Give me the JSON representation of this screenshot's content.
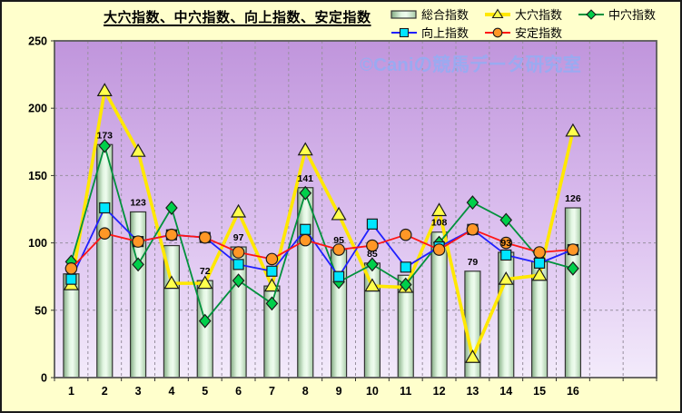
{
  "title": "大穴指数、中穴指数、向上指数、安定指数",
  "watermark": "©Caniの競馬データ研究室",
  "colors": {
    "page_background": "#ffffcc",
    "plot_gradient_top": "#c095dc",
    "plot_gradient_bottom": "#f3ebfb",
    "grid_line": "#98909f",
    "bar_edge": "#333333",
    "bar_fill_light": "#effcef",
    "bar_fill_dark": "#84ac84",
    "watermark_color": "#98abf2",
    "text_color": "#000000"
  },
  "legend": {
    "items": [
      {
        "label": "総合指数",
        "swatch": "bar"
      },
      {
        "label": "大穴指数",
        "swatch": "triangle"
      },
      {
        "label": "中穴指数",
        "swatch": "diamond"
      },
      {
        "label": "向上指数",
        "swatch": "square"
      },
      {
        "label": "安定指数",
        "swatch": "circle"
      }
    ],
    "rows": [
      [
        0,
        1,
        2
      ],
      [
        3,
        4
      ]
    ]
  },
  "chart_data": {
    "type": "combo-bar-line",
    "title": "大穴指数、中穴指数、向上指数、安定指数",
    "categories": [
      1,
      2,
      3,
      4,
      5,
      6,
      7,
      8,
      9,
      10,
      11,
      12,
      13,
      14,
      15,
      16
    ],
    "x_axis": {
      "labels": [
        "1",
        "2",
        "3",
        "4",
        "5",
        "6",
        "7",
        "8",
        "9",
        "10",
        "11",
        "12",
        "13",
        "14",
        "15",
        "16"
      ],
      "total_slots": 18
    },
    "y_axis": {
      "min": 0,
      "max": 250,
      "ticks": [
        0,
        50,
        100,
        150,
        200,
        250
      ]
    },
    "grid": true,
    "legend_position": "top-right",
    "series": [
      {
        "name": "総合指数",
        "kind": "bar",
        "values": [
          77,
          173,
          123,
          98,
          72,
          97,
          68,
          141,
          95,
          85,
          76,
          108,
          79,
          93,
          86,
          126
        ],
        "labels_shown": [
          null,
          173,
          123,
          null,
          72,
          97,
          null,
          141,
          95,
          85,
          null,
          108,
          79,
          93,
          null,
          126
        ]
      },
      {
        "name": "大穴指数",
        "kind": "line",
        "marker": "triangle",
        "line_color": "#ffe800",
        "marker_fill": "#ffff4d",
        "line_width": 3.6,
        "values": [
          69,
          213,
          168,
          70,
          70,
          123,
          68,
          169,
          121,
          68,
          67,
          124,
          15,
          73,
          76,
          183
        ]
      },
      {
        "name": "中穴指数",
        "kind": "line",
        "marker": "diamond",
        "line_color": "#00913c",
        "marker_fill": "#00cf4a",
        "line_width": 1.8,
        "values": [
          86,
          172,
          84,
          126,
          42,
          72,
          55,
          137,
          71,
          84,
          69,
          100,
          130,
          117,
          88,
          81
        ]
      },
      {
        "name": "向上指数",
        "kind": "line",
        "marker": "square",
        "line_color": "#2020ff",
        "marker_fill": "#00e6ff",
        "line_width": 1.8,
        "values": [
          73,
          126,
          101,
          106,
          104,
          84,
          79,
          110,
          75,
          114,
          82,
          97,
          110,
          91,
          85,
          95
        ]
      },
      {
        "name": "安定指数",
        "kind": "line",
        "marker": "circle",
        "line_color": "#ff1515",
        "marker_fill": "#ff9726",
        "line_width": 1.8,
        "values": [
          81,
          107,
          101,
          106,
          104,
          93,
          88,
          102,
          95,
          98,
          106,
          95,
          110,
          100,
          93,
          95
        ]
      }
    ]
  }
}
